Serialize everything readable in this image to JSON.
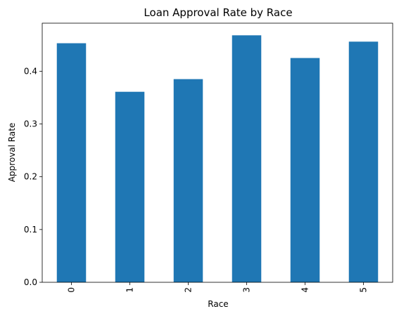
{
  "chart_data": {
    "type": "bar",
    "title": "Loan Approval Rate by Race",
    "xlabel": "Race",
    "ylabel": "Approval Rate",
    "categories": [
      "0",
      "1",
      "2",
      "3",
      "4",
      "5"
    ],
    "values": [
      0.453,
      0.361,
      0.385,
      0.468,
      0.425,
      0.456
    ],
    "ylim": [
      0,
      0.491
    ],
    "yticks": [
      "0.0",
      "0.1",
      "0.2",
      "0.3",
      "0.4"
    ],
    "bar_color": "#1f77b4",
    "grid": false,
    "legend": false,
    "x_tick_rotation": 90
  }
}
